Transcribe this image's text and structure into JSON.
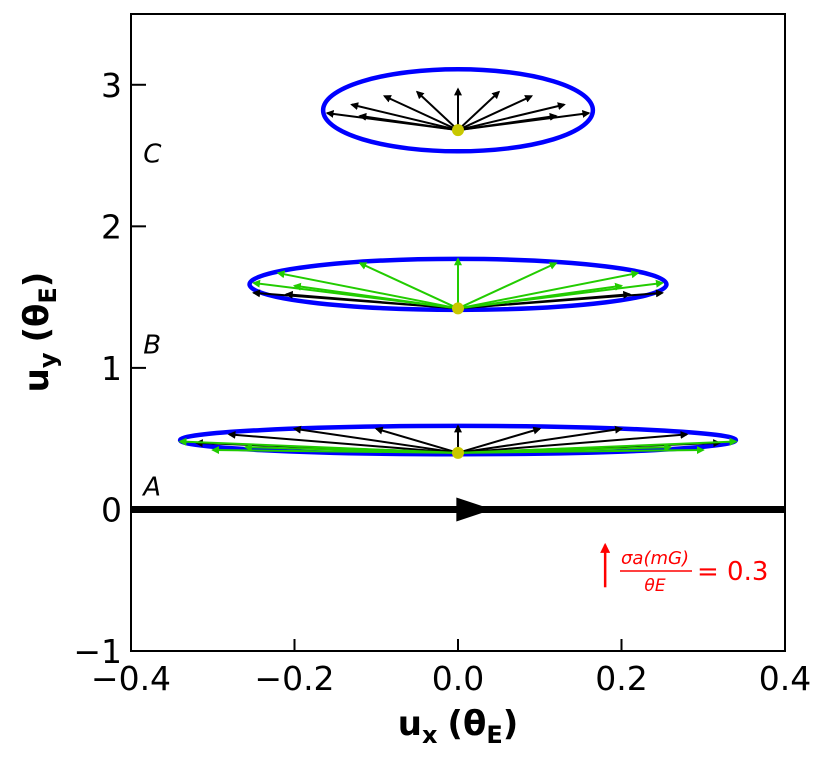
{
  "chart_data": {
    "type": "scatter",
    "title": "",
    "xlabel": {
      "base": "u",
      "sub": "x",
      "unit": "(θ",
      "unit_sub": "E",
      "close": ")"
    },
    "ylabel": {
      "base": "u",
      "sub": "y",
      "unit": "(θ",
      "unit_sub": "E",
      "close": ")"
    },
    "xlim": [
      -0.4,
      0.4
    ],
    "ylim": [
      -1,
      3.5
    ],
    "xticks": [
      -0.4,
      -0.2,
      0.0,
      0.2,
      0.4
    ],
    "xtick_labels": [
      "−0.4",
      "−0.2",
      "0.0",
      "0.2",
      "0.4"
    ],
    "yticks": [
      -1,
      0,
      1,
      2,
      3
    ],
    "ytick_labels": [
      "−1",
      "0",
      "1",
      "2",
      "3"
    ],
    "grid": false,
    "colors": {
      "ellipse": "#0000ff",
      "vector_black": "#000000",
      "vector_green": "#22cc00",
      "source": "#c8c800",
      "scale": "#ff0000",
      "trajectory": "#000000"
    },
    "trajectory": {
      "y": 0,
      "arrow_x": 0.02
    },
    "annotations": [
      {
        "text": "A",
        "x": -0.385,
        "y": 0.1
      },
      {
        "text": "B",
        "x": -0.385,
        "y": 1.1
      },
      {
        "text": "C",
        "x": -0.385,
        "y": 2.45
      }
    ],
    "scale_arrow": {
      "x": 0.18,
      "y0": -0.55,
      "y1": -0.25,
      "numerator": "σa(mG)",
      "denominator": "θE",
      "equals": "= 0.3"
    },
    "panels": [
      {
        "name": "A",
        "source": [
          0,
          0.4
        ],
        "ellipse": {
          "a": 0.34,
          "b": 0.1,
          "cy": 0.49
        },
        "black_vectors": [
          [
            -0.32,
            0.47
          ],
          [
            -0.28,
            0.53
          ],
          [
            -0.2,
            0.57
          ],
          [
            -0.1,
            0.57
          ],
          [
            0.0,
            0.59
          ],
          [
            0.1,
            0.57
          ],
          [
            0.2,
            0.57
          ],
          [
            0.28,
            0.53
          ],
          [
            0.32,
            0.47
          ]
        ],
        "green_vectors": [
          [
            -0.34,
            0.48
          ],
          [
            -0.3,
            0.42
          ],
          [
            -0.26,
            0.44
          ],
          [
            0.26,
            0.44
          ],
          [
            0.3,
            0.42
          ],
          [
            0.34,
            0.48
          ]
        ]
      },
      {
        "name": "B",
        "source": [
          0,
          1.42
        ],
        "ellipse": {
          "a": 0.255,
          "b": 0.18,
          "cy": 1.59
        },
        "black_vectors": [
          [
            -0.25,
            1.53
          ],
          [
            -0.21,
            1.52
          ],
          [
            0.21,
            1.52
          ],
          [
            0.25,
            1.53
          ]
        ],
        "green_vectors": [
          [
            -0.25,
            1.6
          ],
          [
            -0.22,
            1.67
          ],
          [
            -0.12,
            1.74
          ],
          [
            0.0,
            1.77
          ],
          [
            0.12,
            1.74
          ],
          [
            0.22,
            1.67
          ],
          [
            0.25,
            1.6
          ],
          [
            -0.2,
            1.58
          ],
          [
            0.2,
            1.58
          ]
        ]
      },
      {
        "name": "C",
        "source": [
          0,
          2.68
        ],
        "ellipse": {
          "a": 0.165,
          "b": 0.29,
          "cy": 2.82
        },
        "black_vectors": [
          [
            -0.16,
            2.8
          ],
          [
            -0.13,
            2.86
          ],
          [
            -0.09,
            2.92
          ],
          [
            -0.05,
            2.95
          ],
          [
            0.0,
            2.97
          ],
          [
            0.05,
            2.95
          ],
          [
            0.09,
            2.92
          ],
          [
            0.13,
            2.86
          ],
          [
            0.16,
            2.8
          ],
          [
            -0.12,
            2.78
          ],
          [
            0.12,
            2.78
          ]
        ],
        "green_vectors": []
      }
    ]
  }
}
